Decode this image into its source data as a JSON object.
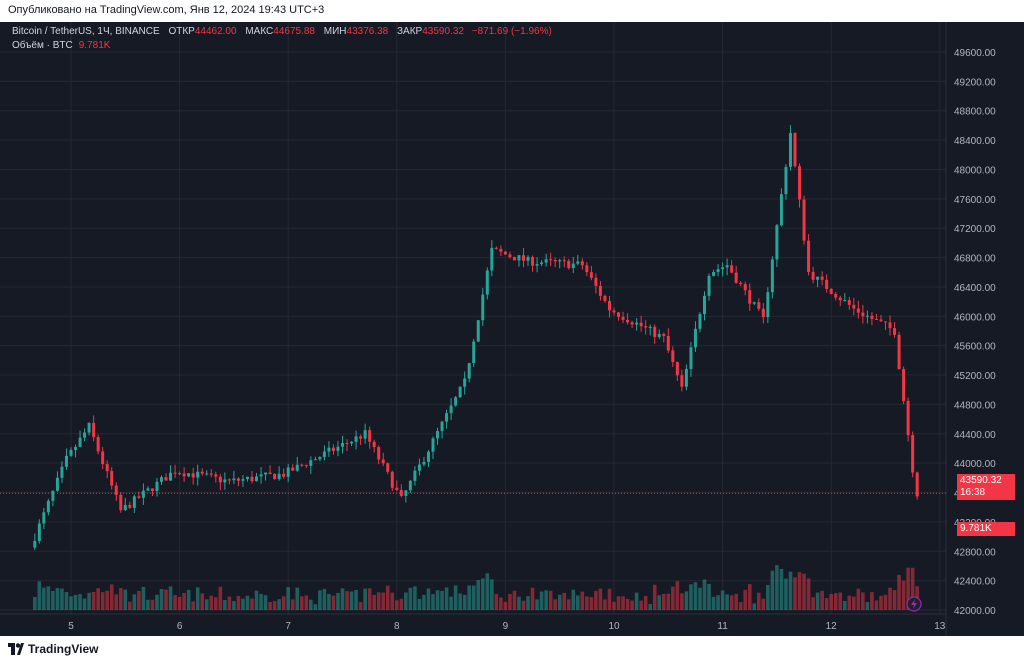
{
  "header": {
    "published": "Опубликовано на TradingView.com, Янв 12, 2024 19:43 UTC+3"
  },
  "legend": {
    "symbol": "Bitcoin / TetherUS, 1Ч, BINANCE",
    "open_label": "ОТКР",
    "open": "44462.00",
    "high_label": "МАКС",
    "high": "44675.88",
    "low_label": "МИН",
    "low": "43376.38",
    "close_label": "ЗАКР",
    "close": "43590.32",
    "change": "−871.69 (−1.96%)",
    "volume_label": "Объём · BTC",
    "volume": "9.781K"
  },
  "last_price_tag": {
    "price": "43590.32",
    "countdown": "16:38"
  },
  "volume_tag": "9.781K",
  "footer": {
    "brand": "TradingView"
  },
  "colors": {
    "up": "#26a69a",
    "down": "#f23645",
    "background": "#161a25",
    "grid": "#242833",
    "text": "#b2b5be"
  },
  "chart_data": {
    "type": "candlestick",
    "title": "Bitcoin / TetherUS, 1Ч, BINANCE",
    "x_ticks": [
      "5",
      "6",
      "7",
      "8",
      "9",
      "10",
      "11",
      "12",
      "13"
    ],
    "y_ticks": [
      "49600.00",
      "49200.00",
      "48800.00",
      "48400.00",
      "48000.00",
      "47600.00",
      "47200.00",
      "46800.00",
      "46400.00",
      "46000.00",
      "45600.00",
      "45200.00",
      "44800.00",
      "44400.00",
      "44000.00",
      "43600.00",
      "43200.00",
      "42800.00",
      "42400.00",
      "42000.00"
    ],
    "ylim": [
      41950,
      49750
    ],
    "grid": true,
    "last_price": 43590.32,
    "last_volume": "9.781K",
    "key_points": [
      {
        "x": "4 Jan 16:00",
        "price": 42850
      },
      {
        "x": "5 Jan 00:00",
        "price": 44050
      },
      {
        "x": "5 Jan 05:00",
        "price": 44500
      },
      {
        "x": "5 Jan 12:00",
        "price": 43350
      },
      {
        "x": "6 Jan 00:00",
        "price": 43900
      },
      {
        "x": "6 Jan 12:00",
        "price": 43750
      },
      {
        "x": "7 Jan 00:00",
        "price": 43850
      },
      {
        "x": "7 Jan 18:00",
        "price": 44400
      },
      {
        "x": "8 Jan 02:00",
        "price": 43500
      },
      {
        "x": "8 Jan 16:00",
        "price": 45100
      },
      {
        "x": "8 Jan 22:00",
        "price": 46900
      },
      {
        "x": "9 Jan 06:00",
        "price": 46750
      },
      {
        "x": "9 Jan 18:00",
        "price": 46700
      },
      {
        "x": "10 Jan 00:00",
        "price": 46100
      },
      {
        "x": "10 Jan 12:00",
        "price": 45700
      },
      {
        "x": "10 Jan 16:00",
        "price": 45000
      },
      {
        "x": "10 Jan 22:00",
        "price": 46600
      },
      {
        "x": "11 Jan 02:00",
        "price": 46700
      },
      {
        "x": "11 Jan 10:00",
        "price": 45950
      },
      {
        "x": "11 Jan 16:00",
        "price": 48500
      },
      {
        "x": "11 Jan 20:00",
        "price": 46600
      },
      {
        "x": "12 Jan 06:00",
        "price": 46100
      },
      {
        "x": "12 Jan 15:00",
        "price": 45800
      },
      {
        "x": "12 Jan 19:43",
        "price": 43590
      }
    ]
  }
}
